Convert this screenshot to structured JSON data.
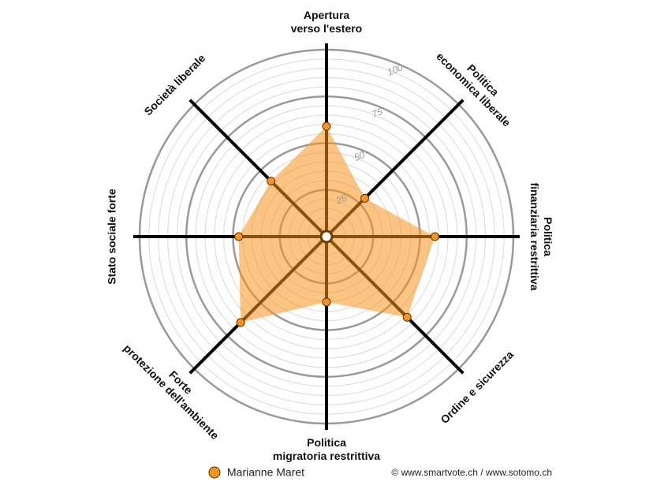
{
  "chart_data": {
    "type": "radar",
    "categories": [
      [
        "Apertura",
        "verso l'estero"
      ],
      [
        "Politica",
        "economica liberale"
      ],
      [
        "Politica",
        "finanziaria restrittiva"
      ],
      [
        "Ordine e sicurezza"
      ],
      [
        "Politica",
        "migratoria restrittiva"
      ],
      [
        "Forte",
        "protezione dell'ambiente"
      ],
      [
        "Stato sociale forte"
      ],
      [
        "Società liberale"
      ]
    ],
    "series": [
      {
        "name": "Marianne Maret",
        "color": "#f7941d",
        "values": [
          59,
          29,
          58,
          61,
          35,
          65,
          47,
          42
        ]
      }
    ],
    "rlim": [
      0,
      100
    ],
    "rticks": [
      25,
      50,
      75,
      100
    ],
    "source": "© www.smartvote.ch / www.sotomo.ch"
  }
}
